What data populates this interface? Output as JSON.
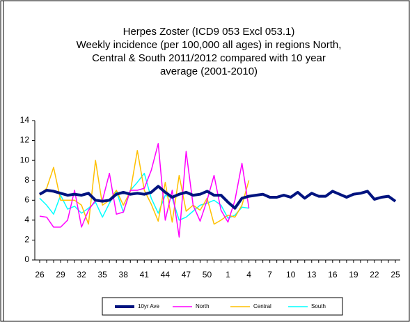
{
  "chart_data": {
    "type": "line",
    "title": [
      "Herpes Zoster (ICD9 053 Excl 053.1)",
      "Weekly incidence (per 100,000 all ages) in regions North,",
      "Central & South 2011/2012 compared with 10 year",
      "average (2001-2010)"
    ],
    "categories": [
      26,
      null,
      null,
      29,
      null,
      null,
      32,
      null,
      null,
      35,
      null,
      null,
      38,
      null,
      null,
      41,
      null,
      null,
      44,
      null,
      null,
      47,
      null,
      null,
      50,
      null,
      null,
      1,
      null,
      null,
      4,
      null,
      null,
      7,
      null,
      null,
      10,
      null,
      null,
      13,
      null,
      null,
      16,
      null,
      null,
      19,
      null,
      null,
      22,
      null,
      null,
      25
    ],
    "ylim": [
      0,
      14
    ],
    "yticks": [
      0,
      2,
      4,
      6,
      8,
      10,
      12,
      14
    ],
    "grid": false,
    "legend": "bottom",
    "series": [
      {
        "name": "10yr Ave",
        "color": "#00137f",
        "width": 4,
        "values": [
          6.6,
          7.0,
          6.9,
          6.7,
          6.5,
          6.6,
          6.5,
          6.7,
          6.0,
          5.9,
          6.0,
          6.6,
          6.8,
          6.6,
          6.7,
          6.6,
          6.8,
          7.4,
          6.8,
          6.3,
          6.6,
          6.8,
          6.5,
          6.6,
          6.9,
          6.5,
          6.5,
          5.8,
          5.2,
          6.2,
          6.4,
          6.5,
          6.6,
          6.3,
          6.3,
          6.5,
          6.3,
          6.8,
          6.2,
          6.7,
          6.4,
          6.4,
          6.9,
          6.6,
          6.3,
          6.6,
          6.7,
          6.9,
          6.1,
          6.3,
          6.4,
          5.9
        ]
      },
      {
        "name": "North",
        "color": "#ff00ff",
        "width": 1.5,
        "values": [
          4.4,
          4.3,
          3.3,
          3.3,
          4.0,
          7.0,
          3.3,
          5.0,
          6.0,
          6.0,
          8.7,
          4.6,
          4.8,
          7.0,
          7.0,
          7.2,
          9.0,
          11.7,
          4.0,
          7.0,
          2.3,
          10.9,
          5.5,
          3.9,
          6.0,
          8.5,
          5.0,
          3.8,
          6.0,
          9.7,
          5.2,
          null,
          null,
          null,
          null,
          null,
          null,
          null,
          null,
          null,
          null,
          null,
          null,
          null,
          null,
          null,
          null,
          null,
          null,
          null,
          null,
          null
        ]
      },
      {
        "name": "Central",
        "color": "#ffc000",
        "width": 1.5,
        "values": [
          6.5,
          7.2,
          9.3,
          6.0,
          6.0,
          6.0,
          5.5,
          3.6,
          10.0,
          5.5,
          6.0,
          7.0,
          5.5,
          6.9,
          11.0,
          7.0,
          5.6,
          3.9,
          7.8,
          3.8,
          8.5,
          4.9,
          5.5,
          5.0,
          6.2,
          3.6,
          4.0,
          4.5,
          4.3,
          5.5,
          8.0,
          null,
          null,
          null,
          null,
          null,
          null,
          null,
          null,
          null,
          null,
          null,
          null,
          null,
          null,
          null,
          null,
          null,
          null,
          null,
          null,
          null
        ]
      },
      {
        "name": "South",
        "color": "#00ffff",
        "width": 1.5,
        "values": [
          6.2,
          5.5,
          4.6,
          6.5,
          5.1,
          5.4,
          4.7,
          5.2,
          5.8,
          4.3,
          5.7,
          6.9,
          4.8,
          7.0,
          7.8,
          8.7,
          6.2,
          4.7,
          6.5,
          6.2,
          4.0,
          4.3,
          4.9,
          5.5,
          5.7,
          6.0,
          5.5,
          4.2,
          4.5,
          5.3,
          5.2,
          null,
          null,
          null,
          null,
          null,
          null,
          null,
          null,
          null,
          null,
          null,
          null,
          null,
          null,
          null,
          null,
          null,
          null,
          null,
          null,
          null
        ]
      }
    ]
  }
}
